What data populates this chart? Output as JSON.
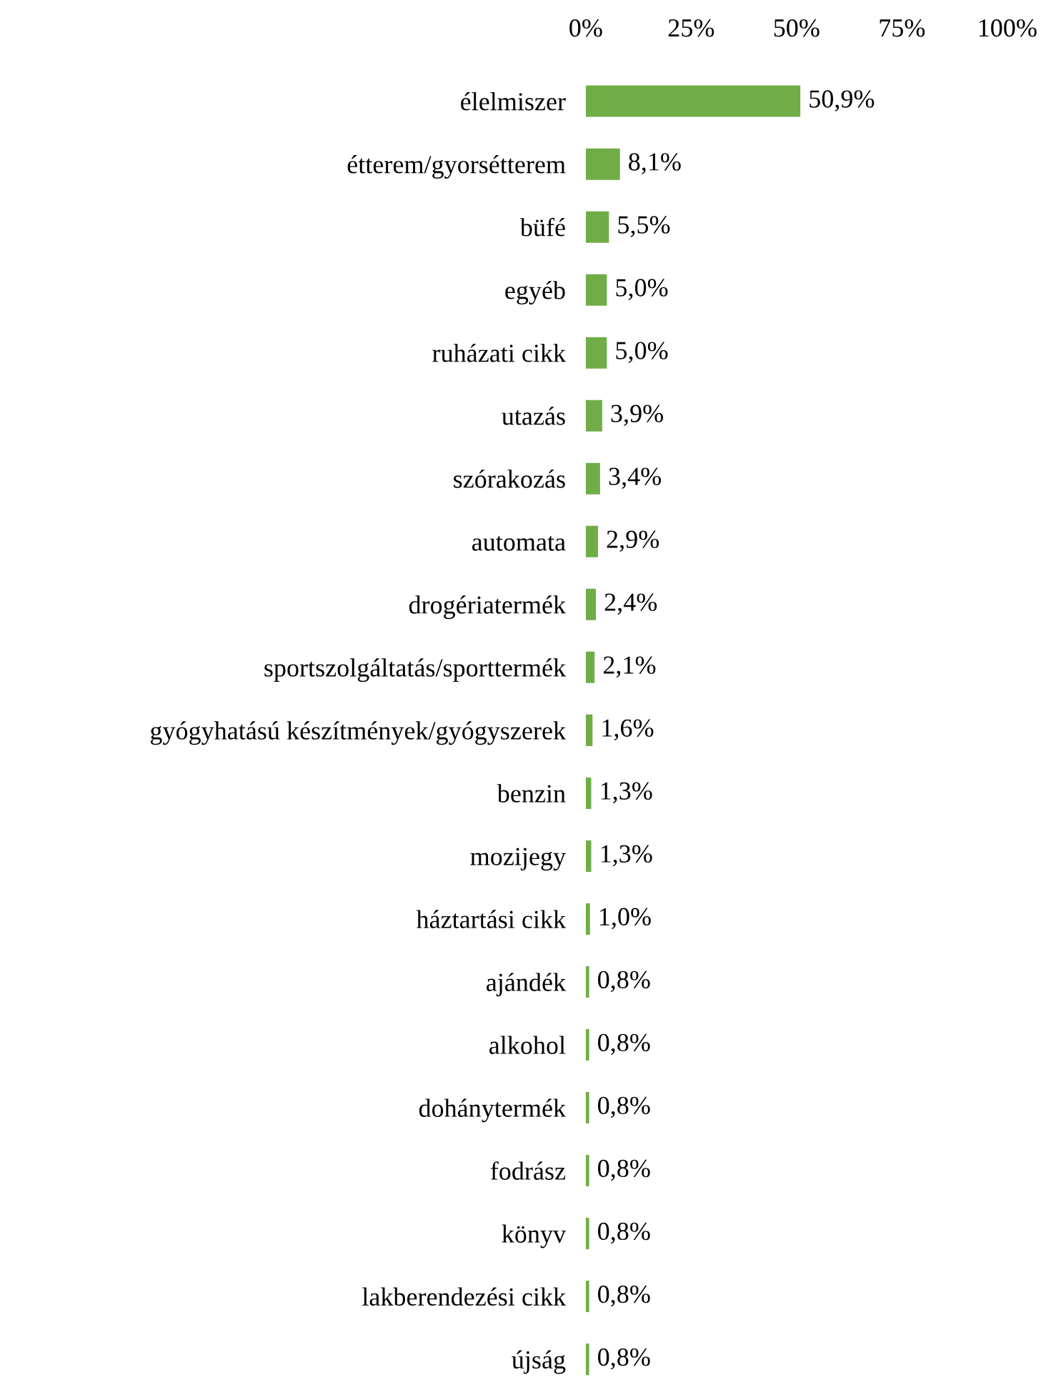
{
  "chart_data": {
    "type": "bar",
    "orientation": "horizontal",
    "color": "#70ad47",
    "categories": [
      "élelmiszer",
      "étterem/gyorsétterem",
      "büfé",
      "egyéb",
      "ruházati cikk",
      "utazás",
      "szórakozás",
      "automata",
      "drogériatermék",
      "sportszolgáltatás/sporttermék",
      "gyógyhatású készítmények/gyógyszerek",
      "benzin",
      "mozijegy",
      "háztartási cikk",
      "ajándék",
      "alkohol",
      "dohánytermék",
      "fodrász",
      "könyv",
      "lakberendezési cikk",
      "újság"
    ],
    "values": [
      50.9,
      8.1,
      5.5,
      5.0,
      5.0,
      3.9,
      3.4,
      2.9,
      2.4,
      2.1,
      1.6,
      1.3,
      1.3,
      1.0,
      0.8,
      0.8,
      0.8,
      0.8,
      0.8,
      0.8,
      0.8
    ],
    "value_labels": [
      "50,9%",
      "8,1%",
      "5,5%",
      "5,0%",
      "5,0%",
      "3,9%",
      "3,4%",
      "2,9%",
      "2,4%",
      "2,1%",
      "1,6%",
      "1,3%",
      "1,3%",
      "1,0%",
      "0,8%",
      "0,8%",
      "0,8%",
      "0,8%",
      "0,8%",
      "0,8%",
      "0,8%"
    ],
    "xlim": [
      0,
      100
    ],
    "xticks": [
      {
        "value": 0,
        "label": "0%"
      },
      {
        "value": 25,
        "label": "25%"
      },
      {
        "value": 50,
        "label": "50%"
      },
      {
        "value": 75,
        "label": "75%"
      },
      {
        "value": 100,
        "label": "100%"
      }
    ],
    "grid": false,
    "legend": false
  }
}
